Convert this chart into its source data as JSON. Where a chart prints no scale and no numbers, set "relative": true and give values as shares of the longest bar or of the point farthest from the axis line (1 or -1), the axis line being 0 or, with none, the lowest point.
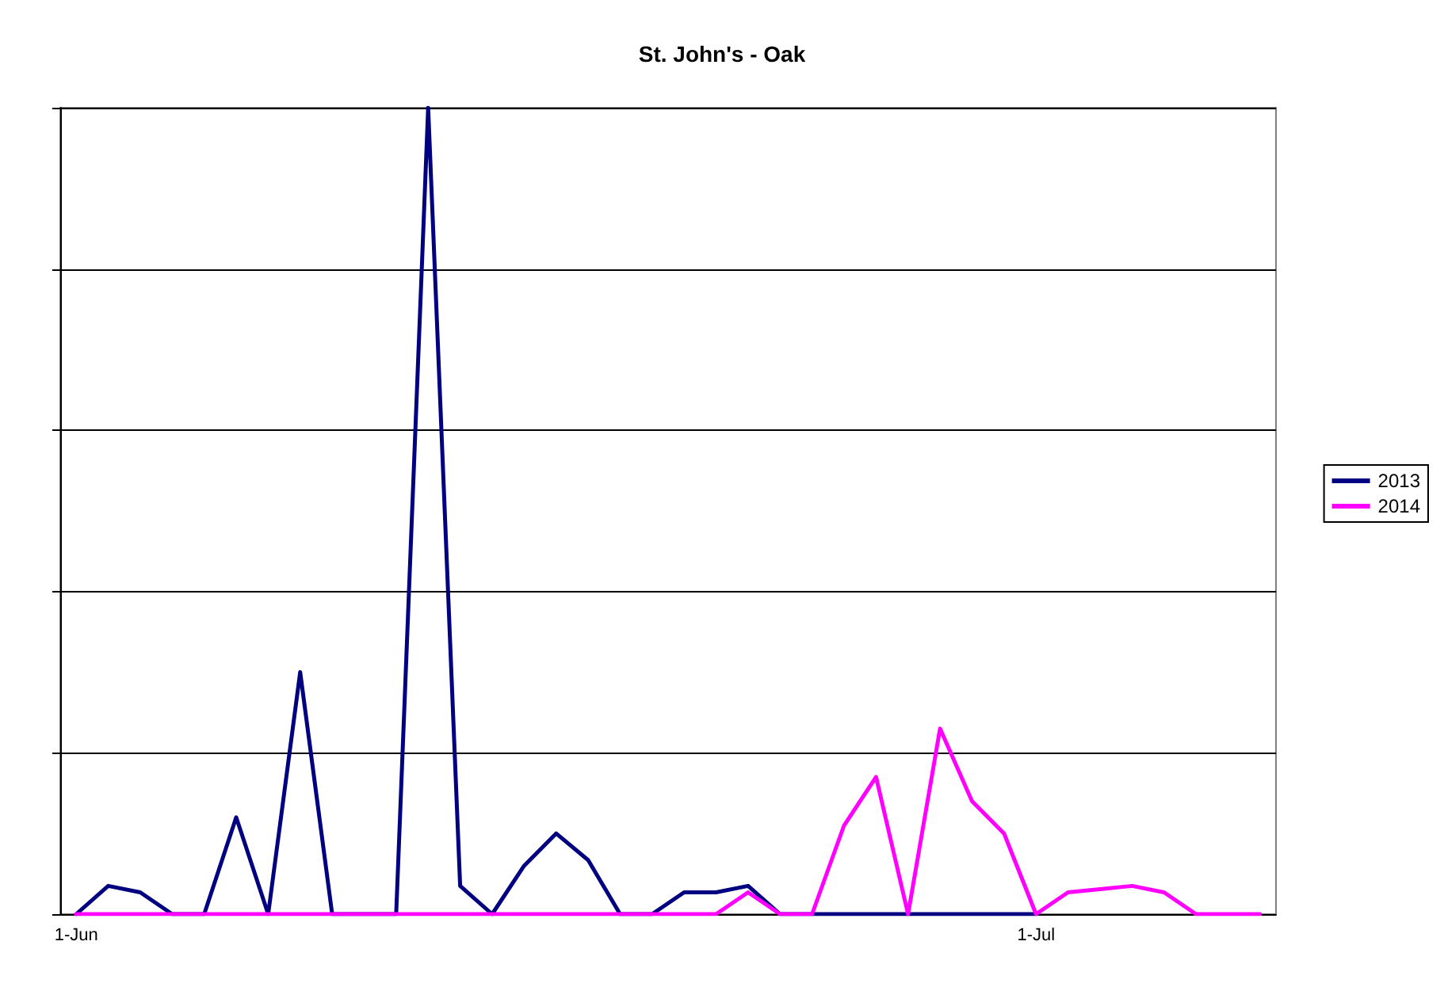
{
  "chart_data": {
    "type": "line",
    "title": "St. John's - Oak",
    "relative": true,
    "grid": "y",
    "legend": "right",
    "marker": "none",
    "line_style": "solid",
    "categories": [
      "1-Jun",
      null,
      null,
      null,
      null,
      null,
      null,
      null,
      null,
      null,
      null,
      null,
      null,
      null,
      null,
      null,
      null,
      null,
      null,
      null,
      null,
      null,
      null,
      null,
      null,
      null,
      null,
      null,
      null,
      null,
      "1-Jul",
      null,
      null,
      null,
      null,
      null,
      null,
      null
    ],
    "series": [
      {
        "name": "2013",
        "color": "#000080",
        "values": [
          0,
          0.035,
          0.027,
          0,
          0,
          0.12,
          0,
          0.3,
          0,
          0,
          0,
          1,
          0.035,
          0,
          0.06,
          0.1,
          0.067,
          0,
          0,
          0.027,
          0.027,
          0.035,
          0,
          0,
          0,
          0,
          0,
          0,
          0,
          0,
          0,
          null,
          null,
          null,
          null,
          null,
          null,
          null
        ]
      },
      {
        "name": "2014",
        "color": "#ff00ff",
        "values": [
          0,
          0,
          0,
          0,
          0,
          0,
          0,
          0,
          0,
          0,
          0,
          0,
          0,
          0,
          0,
          0,
          0,
          0,
          0,
          0,
          0,
          0.027,
          0,
          0,
          0.11,
          0.17,
          0,
          0.23,
          0.14,
          0.1,
          0,
          0.027,
          0.031,
          0.035,
          0.027,
          0,
          0,
          0
        ]
      }
    ]
  }
}
